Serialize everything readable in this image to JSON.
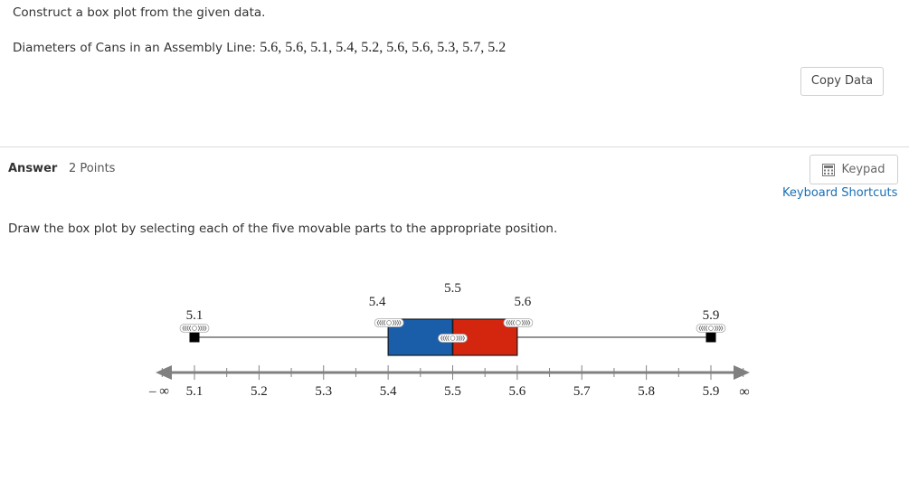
{
  "question": {
    "prompt": "Construct a box plot from the given data.",
    "data_label": "Diameters of Cans in an Assembly Line:",
    "data_values": "5.6, 5.6, 5.1, 5.4, 5.2, 5.6, 5.6, 5.3, 5.7, 5.2",
    "copy_button": "Copy Data"
  },
  "answer": {
    "label": "Answer",
    "points": "2 Points",
    "keypad_button": "Keypad",
    "keyboard_shortcuts_link": "Keyboard Shortcuts",
    "instructions": "Draw the box plot by selecting each of the five movable parts to the appropriate position."
  },
  "chart_data": {
    "type": "boxplot",
    "axis": {
      "min": 5.1,
      "max": 5.9,
      "major_ticks": [
        5.1,
        5.2,
        5.3,
        5.4,
        5.5,
        5.6,
        5.7,
        5.8,
        5.9
      ],
      "tick_labels": [
        "5.1",
        "5.2",
        "5.3",
        "5.4",
        "5.5",
        "5.6",
        "5.7",
        "5.8",
        "5.9"
      ],
      "minor_step": 0.05,
      "left_end_label": "– ∞",
      "right_end_label": "∞"
    },
    "handles": {
      "min": {
        "value": 5.1,
        "label": "5.1"
      },
      "q1": {
        "value": 5.4,
        "label": "5.4"
      },
      "median": {
        "value": 5.5,
        "label": "5.5"
      },
      "q3": {
        "value": 5.6,
        "label": "5.6"
      },
      "max": {
        "value": 5.9,
        "label": "5.9"
      }
    },
    "colors": {
      "lower_box": "#1a5ea9",
      "upper_box": "#d4260f",
      "axis": "#808080",
      "whisker": "#555555",
      "endpoint": "#000000"
    }
  }
}
